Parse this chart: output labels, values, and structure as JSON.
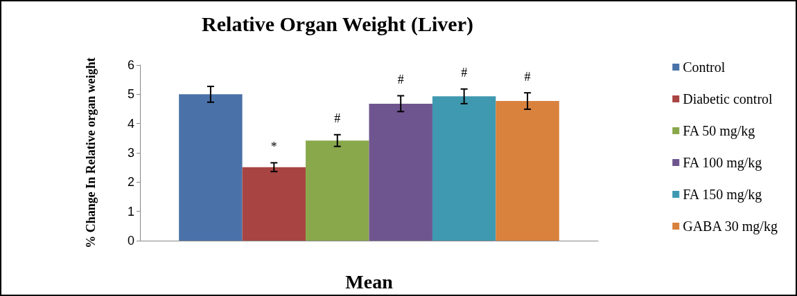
{
  "chart_data": {
    "type": "bar",
    "title": "Relative Organ Weight (Liver)",
    "xlabel": "Mean",
    "ylabel": "% Change In Relative organ weight",
    "categories": [
      null
    ],
    "series": [
      {
        "name": "Control",
        "color": "#4a72a8",
        "values": [
          5.0
        ],
        "errors": [
          0.27
        ]
      },
      {
        "name": "Diabetic control",
        "color": "#a84442",
        "values": [
          2.51
        ],
        "errors": [
          0.15
        ],
        "value_labels": [
          "*"
        ]
      },
      {
        "name": "FA 50 mg/kg",
        "color": "#89a84b",
        "values": [
          3.42
        ],
        "errors": [
          0.2
        ],
        "value_labels": [
          "#"
        ]
      },
      {
        "name": "FA 100 mg/kg",
        "color": "#6f558f",
        "values": [
          4.68
        ],
        "errors": [
          0.27
        ],
        "value_labels": [
          "#"
        ]
      },
      {
        "name": "FA 150 mg/kg",
        "color": "#3f99b0",
        "values": [
          4.93
        ],
        "errors": [
          0.25
        ],
        "value_labels": [
          "#"
        ]
      },
      {
        "name": "GABA 30 mg/kg",
        "color": "#d9823e",
        "values": [
          4.77
        ],
        "errors": [
          0.28
        ],
        "value_labels": [
          "#"
        ]
      }
    ],
    "ylim": [
      0,
      6
    ],
    "yticks": [
      0,
      1,
      2,
      3,
      4,
      5,
      6
    ],
    "grid": false,
    "legend": "right"
  }
}
